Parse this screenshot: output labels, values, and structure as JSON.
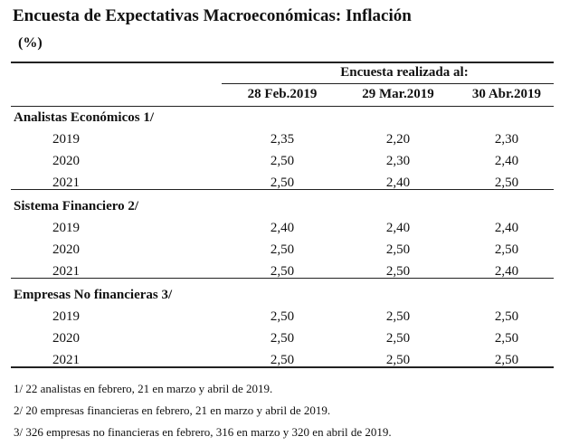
{
  "header": {
    "title": "Encuesta de Expectativas Macroeconómicas: Inflación",
    "unit": "(%)"
  },
  "table": {
    "super_header": "Encuesta realizada al:",
    "columns": [
      "28 Feb.2019",
      "29 Mar.2019",
      "30 Abr.2019"
    ],
    "groups": [
      {
        "name": "Analistas Económicos 1/",
        "rows": [
          {
            "label": "2019",
            "values": [
              "2,35",
              "2,20",
              "2,30"
            ]
          },
          {
            "label": "2020",
            "values": [
              "2,50",
              "2,30",
              "2,40"
            ]
          },
          {
            "label": "2021",
            "values": [
              "2,50",
              "2,40",
              "2,50"
            ]
          }
        ]
      },
      {
        "name": "Sistema Financiero 2/",
        "rows": [
          {
            "label": "2019",
            "values": [
              "2,40",
              "2,40",
              "2,40"
            ]
          },
          {
            "label": "2020",
            "values": [
              "2,50",
              "2,50",
              "2,50"
            ]
          },
          {
            "label": "2021",
            "values": [
              "2,50",
              "2,50",
              "2,40"
            ]
          }
        ]
      },
      {
        "name": "Empresas No financieras 3/",
        "rows": [
          {
            "label": "2019",
            "values": [
              "2,50",
              "2,50",
              "2,50"
            ]
          },
          {
            "label": "2020",
            "values": [
              "2,50",
              "2,50",
              "2,50"
            ]
          },
          {
            "label": "2021",
            "values": [
              "2,50",
              "2,50",
              "2,50"
            ]
          }
        ]
      }
    ]
  },
  "footnotes": [
    "1/ 22 analistas en febrero, 21 en marzo y abril de 2019.",
    "2/ 20 empresas financieras en febrero, 21 en marzo y abril de 2019.",
    "3/ 326 empresas no financieras en febrero, 316 en marzo y 320 en abril de 2019."
  ]
}
